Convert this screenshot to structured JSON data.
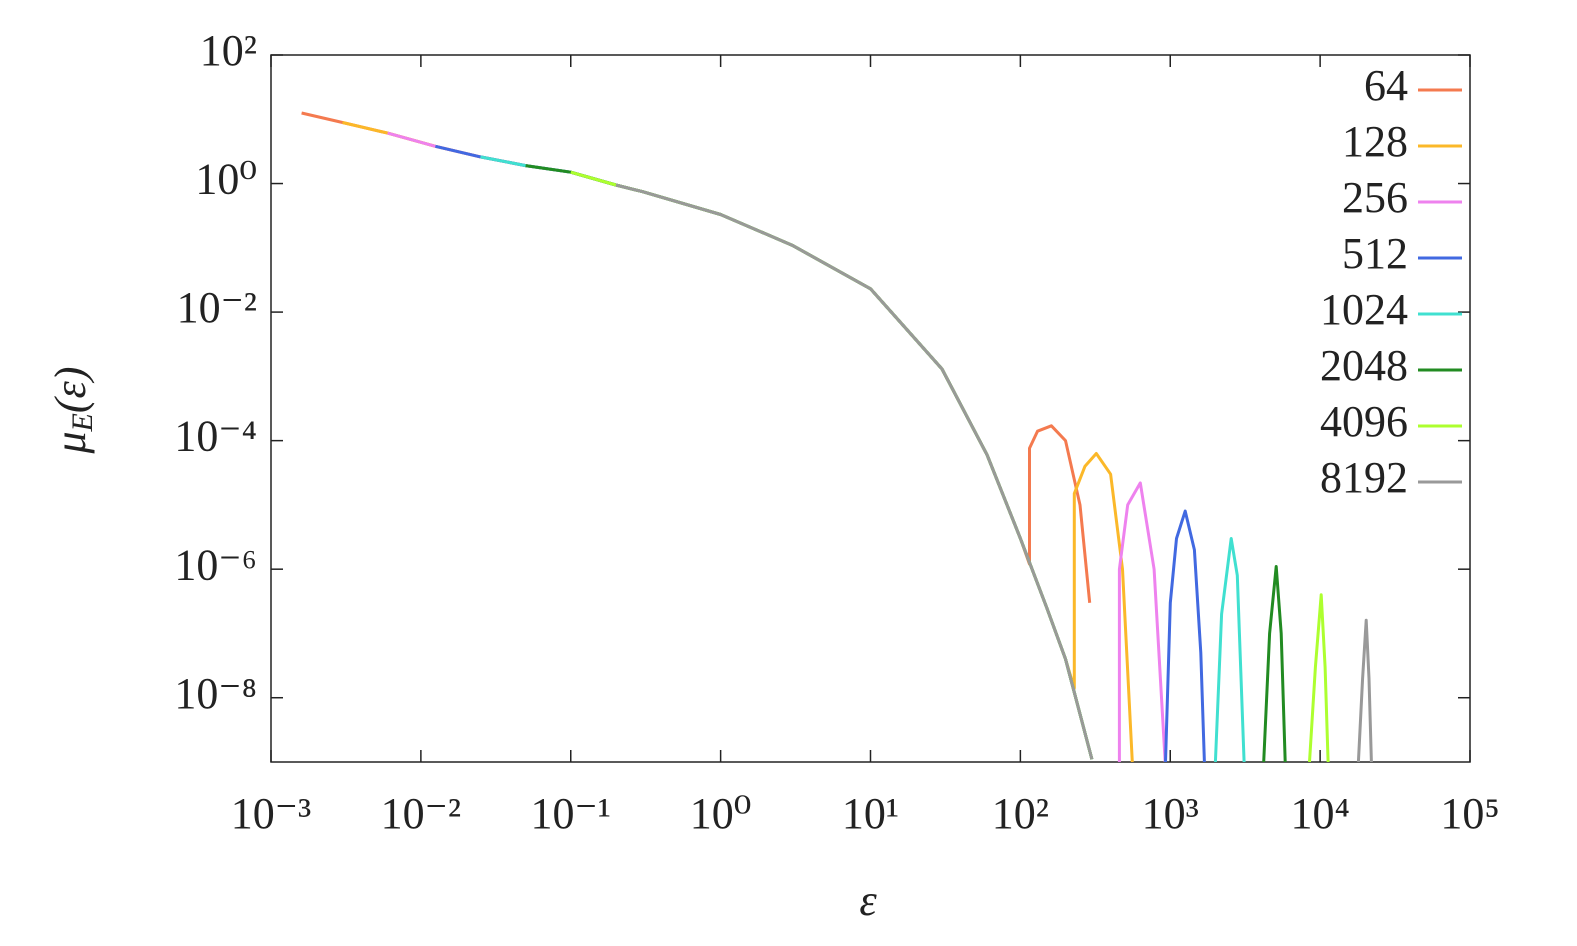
{
  "chart_data": {
    "type": "line",
    "log_x": true,
    "log_y": true,
    "legend": "upper right",
    "xlabel": "ε",
    "ylabel": [
      "μ",
      "E",
      "(ε)"
    ],
    "xlim": [
      0.001,
      100000
    ],
    "ylim": [
      1e-09,
      100
    ],
    "xticks": [
      {
        "value": 0.001,
        "label": "10⁻³"
      },
      {
        "value": 0.01,
        "label": "10⁻²"
      },
      {
        "value": 0.1,
        "label": "10⁻¹"
      },
      {
        "value": 1,
        "label": "10⁰"
      },
      {
        "value": 10,
        "label": "10¹"
      },
      {
        "value": 100,
        "label": "10²"
      },
      {
        "value": 1000,
        "label": "10³"
      },
      {
        "value": 10000,
        "label": "10⁴"
      },
      {
        "value": 100000,
        "label": "10⁵"
      }
    ],
    "yticks": [
      {
        "value": 100,
        "label": "10²"
      },
      {
        "value": 1,
        "label": "10⁰"
      },
      {
        "value": 0.01,
        "label": "10⁻²"
      },
      {
        "value": 0.0001,
        "label": "10⁻⁴"
      },
      {
        "value": 1e-06,
        "label": "10⁻⁶"
      },
      {
        "value": 1e-08,
        "label": "10⁻⁸"
      }
    ],
    "series": [
      {
        "name": "64",
        "color": "#f47a4f",
        "x": [
          0.0016,
          0.003,
          0.006,
          0.0125,
          0.025,
          0.05,
          0.1,
          0.2,
          0.3,
          1,
          3,
          10,
          30,
          60,
          100,
          115,
          115,
          130,
          161,
          200,
          250,
          290
        ],
        "values": [
          12.5,
          8.9,
          6.1,
          3.8,
          2.6,
          1.9,
          1.5,
          0.95,
          0.75,
          0.33,
          0.11,
          0.023,
          0.0013,
          6e-05,
          3e-06,
          1.2e-06,
          7.6e-05,
          0.00014,
          0.00017,
          0.0001,
          1e-05,
          3e-07
        ]
      },
      {
        "name": "128",
        "color": "#fbb829",
        "x": [
          0.003,
          0.006,
          0.0125,
          0.025,
          0.05,
          0.1,
          0.2,
          0.3,
          1,
          3,
          10,
          30,
          60,
          100,
          150,
          200,
          229,
          229,
          270,
          321,
          400,
          480,
          558
        ],
        "values": [
          8.9,
          6.1,
          3.8,
          2.6,
          1.9,
          1.5,
          0.95,
          0.75,
          0.33,
          0.11,
          0.023,
          0.0013,
          6e-05,
          3e-06,
          2.5e-07,
          4e-08,
          1.4e-08,
          1.5e-05,
          4e-05,
          6.3e-05,
          3e-05,
          1e-06,
          1e-09
        ]
      },
      {
        "name": "256",
        "color": "#ee82ee",
        "x": [
          0.006,
          0.0125,
          0.025,
          0.05,
          0.1,
          0.2,
          0.3,
          1,
          3,
          10,
          30,
          60,
          100,
          150,
          200,
          300,
          null,
          458,
          458,
          520,
          631,
          780,
          926
        ],
        "values": [
          6.1,
          3.8,
          2.6,
          1.9,
          1.5,
          0.95,
          0.75,
          0.33,
          0.11,
          0.023,
          0.0013,
          6e-05,
          3e-06,
          2.5e-07,
          4e-08,
          1.1e-09,
          null,
          1e-09,
          1e-06,
          1e-05,
          2.2e-05,
          1e-06,
          1e-09
        ]
      },
      {
        "name": "512",
        "color": "#4169e1",
        "x": [
          0.0125,
          0.025,
          0.05,
          0.1,
          0.2,
          0.3,
          1,
          3,
          10,
          30,
          60,
          100,
          150,
          200,
          300,
          null,
          930,
          1000,
          1100,
          1259,
          1450,
          1600,
          1690
        ],
        "values": [
          3.8,
          2.6,
          1.9,
          1.5,
          0.95,
          0.75,
          0.33,
          0.11,
          0.023,
          0.0013,
          6e-05,
          3e-06,
          2.5e-07,
          4e-08,
          1.1e-09,
          null,
          1e-09,
          3e-07,
          3e-06,
          8e-06,
          2e-06,
          5e-08,
          1e-09
        ]
      },
      {
        "name": "1024",
        "color": "#40e0d0",
        "x": [
          0.025,
          0.05,
          0.1,
          0.2,
          0.3,
          1,
          3,
          10,
          30,
          60,
          100,
          150,
          200,
          300,
          null,
          2000,
          2200,
          2550,
          2800,
          3110
        ],
        "values": [
          2.6,
          1.9,
          1.5,
          0.95,
          0.75,
          0.33,
          0.11,
          0.023,
          0.0013,
          6e-05,
          3e-06,
          2.5e-07,
          4e-08,
          1.1e-09,
          null,
          1e-09,
          2e-07,
          3e-06,
          8e-07,
          1e-09
        ]
      },
      {
        "name": "2048",
        "color": "#228b22",
        "x": [
          0.05,
          0.1,
          0.2,
          0.3,
          1,
          3,
          10,
          30,
          60,
          100,
          150,
          200,
          300,
          null,
          4200,
          4600,
          5090,
          5500,
          5850
        ],
        "values": [
          1.9,
          1.5,
          0.95,
          0.75,
          0.33,
          0.11,
          0.023,
          0.0013,
          6e-05,
          3e-06,
          2.5e-07,
          4e-08,
          1.1e-09,
          null,
          1e-09,
          1e-07,
          1.1e-06,
          1e-07,
          1e-09
        ]
      },
      {
        "name": "4096",
        "color": "#adff2f",
        "x": [
          0.1,
          0.2,
          0.3,
          1,
          3,
          10,
          30,
          60,
          100,
          150,
          200,
          300,
          null,
          8500,
          9300,
          10160,
          10800,
          11300
        ],
        "values": [
          1.5,
          0.95,
          0.75,
          0.33,
          0.11,
          0.023,
          0.0013,
          6e-05,
          3e-06,
          2.5e-07,
          4e-08,
          1.1e-09,
          null,
          1e-09,
          3e-08,
          4e-07,
          3e-08,
          1e-09
        ]
      },
      {
        "name": "8192",
        "color": "#999999",
        "x": [
          0.2,
          0.3,
          1,
          3,
          10,
          30,
          60,
          100,
          150,
          200,
          300,
          null,
          18000,
          19200,
          20300,
          21200,
          22000
        ],
        "values": [
          0.95,
          0.75,
          0.33,
          0.11,
          0.023,
          0.0013,
          6e-05,
          3e-06,
          2.5e-07,
          4e-08,
          1.1e-09,
          null,
          1e-09,
          2e-08,
          1.6e-07,
          2e-08,
          1e-09
        ]
      }
    ]
  }
}
